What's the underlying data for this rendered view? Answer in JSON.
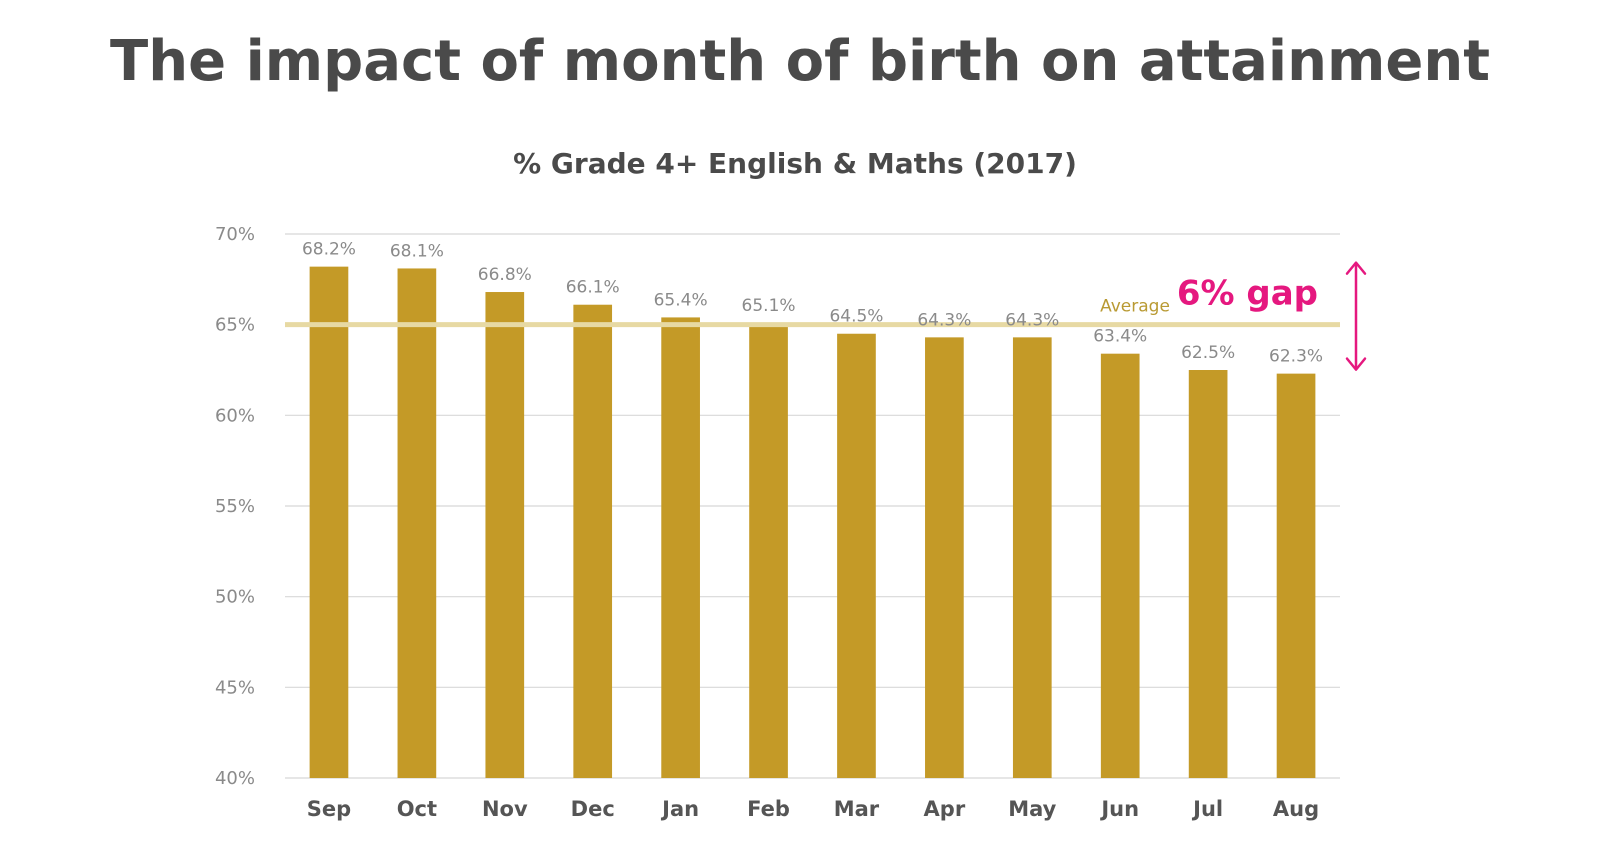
{
  "page": {
    "title": "The impact of month of birth on attainment"
  },
  "chart_data": {
    "type": "bar",
    "title": "% Grade 4+ English & Maths (2017)",
    "xlabel": "",
    "ylabel": "",
    "categories": [
      "Sep",
      "Oct",
      "Nov",
      "Dec",
      "Jan",
      "Feb",
      "Mar",
      "Apr",
      "May",
      "Jun",
      "Jul",
      "Aug"
    ],
    "values": [
      68.2,
      68.1,
      66.8,
      66.1,
      65.4,
      65.1,
      64.5,
      64.3,
      64.3,
      63.4,
      62.5,
      62.3
    ],
    "data_labels": [
      "68.2%",
      "68.1%",
      "66.8%",
      "66.1%",
      "65.4%",
      "65.1%",
      "64.5%",
      "64.3%",
      "64.3%",
      "63.4%",
      "62.5%",
      "62.3%"
    ],
    "ylim": [
      40,
      70
    ],
    "yticks": [
      40,
      45,
      50,
      55,
      60,
      65,
      70
    ],
    "ytick_labels": [
      "40%",
      "45%",
      "50%",
      "55%",
      "60%",
      "65%",
      "70%"
    ],
    "grid": true,
    "highlighted_categories": [
      "Sep",
      "Aug"
    ],
    "reference_line": {
      "label": "Average",
      "value": 65
    },
    "annotation": {
      "text": "6% gap",
      "from_value": 68.2,
      "to_value": 62.3
    }
  },
  "colors": {
    "bar": "#c49a27",
    "highlight": "#e5187f",
    "average_line": "#e7d9a3",
    "average_label": "#b99a33",
    "grid": "#d8d8d8",
    "tick_text": "#8a8a8a",
    "category_text": "#555555",
    "title_text": "#4a4a4a"
  }
}
